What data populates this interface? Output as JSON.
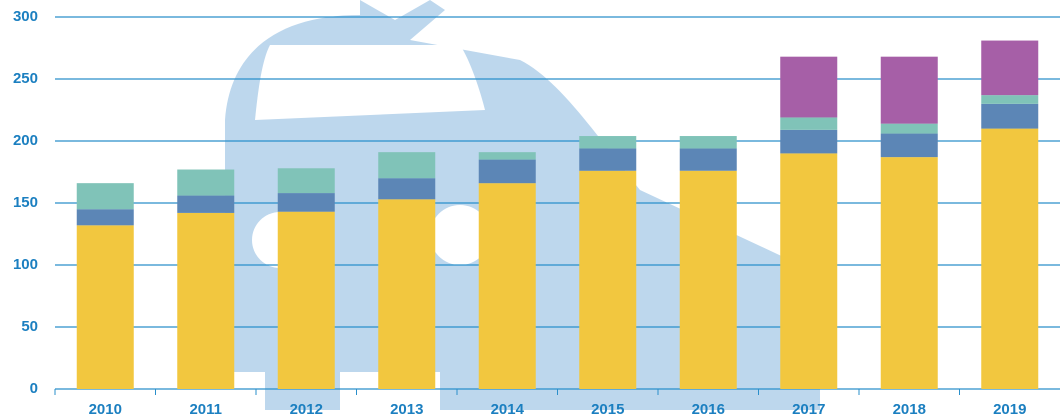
{
  "chart_data": {
    "type": "stacked-bar",
    "categories": [
      "2010",
      "2011",
      "2012",
      "2013",
      "2014",
      "2015",
      "2016",
      "2017",
      "2018",
      "2019"
    ],
    "series": [
      {
        "color": "#f2c73f",
        "values": [
          132,
          142,
          143,
          153,
          166,
          176,
          176,
          190,
          187,
          210
        ]
      },
      {
        "color": "#5c86b6",
        "values": [
          13,
          14,
          15,
          17,
          19,
          18,
          18,
          19,
          19,
          20
        ]
      },
      {
        "color": "#80c3b8",
        "values": [
          21,
          21,
          20,
          21,
          6,
          10,
          10,
          10,
          8,
          7
        ]
      },
      {
        "color": "#a65fa7",
        "values": [
          null,
          null,
          null,
          null,
          null,
          null,
          null,
          49,
          54,
          44
        ]
      }
    ],
    "ylim": [
      0,
      300
    ],
    "yticks": [
      0,
      50,
      100,
      150,
      200,
      250,
      300
    ],
    "grid": true
  }
}
